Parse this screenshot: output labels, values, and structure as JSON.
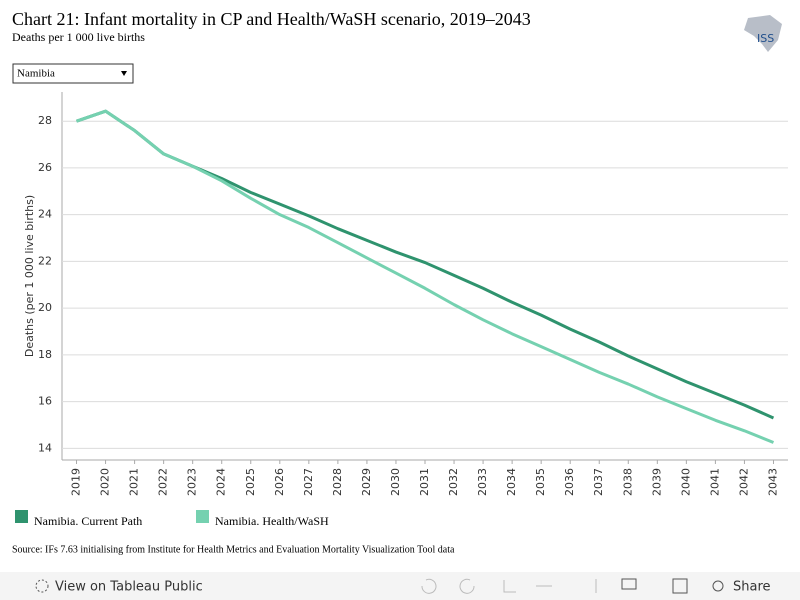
{
  "chart_data": {
    "type": "line",
    "title": "Chart 21: Infant mortality in CP and Health/WaSH scenario, 2019–2043",
    "subtitle": "Deaths per 1 000 live births",
    "y_label": "Deaths (per 1 000 live births)",
    "x": [
      2019,
      2020,
      2021,
      2022,
      2023,
      2024,
      2025,
      2026,
      2027,
      2028,
      2029,
      2030,
      2031,
      2032,
      2033,
      2034,
      2035,
      2036,
      2037,
      2038,
      2039,
      2040,
      2041,
      2042,
      2043
    ],
    "xlim": [
      2018.5,
      2043.5
    ],
    "xticks": [
      2019,
      2020,
      2021,
      2022,
      2023,
      2024,
      2025,
      2026,
      2027,
      2028,
      2029,
      2030,
      2031,
      2032,
      2033,
      2034,
      2035,
      2036,
      2037,
      2038,
      2039,
      2040,
      2041,
      2042,
      2043
    ],
    "ylim": [
      13.5,
      29.25
    ],
    "yticks": [
      14,
      16,
      18,
      20,
      22,
      24,
      26,
      28
    ],
    "grid": true,
    "series": [
      {
        "name": "Namibia. Current Path",
        "color": "#2f936e",
        "values": [
          28.0,
          28.43,
          27.6,
          26.6,
          26.07,
          25.55,
          24.95,
          24.45,
          23.95,
          23.4,
          22.9,
          22.4,
          21.95,
          21.4,
          20.85,
          20.25,
          19.7,
          19.1,
          18.55,
          17.95,
          17.4,
          16.85,
          16.35,
          15.85,
          15.3
        ]
      },
      {
        "name": "Namibia. Health/WaSH",
        "color": "#75d1b0",
        "values": [
          28.0,
          28.43,
          27.6,
          26.6,
          26.07,
          25.45,
          24.7,
          24.0,
          23.45,
          22.8,
          22.15,
          21.5,
          20.85,
          20.15,
          19.5,
          18.9,
          18.35,
          17.8,
          17.25,
          16.75,
          16.2,
          15.7,
          15.2,
          14.75,
          14.25
        ]
      }
    ]
  },
  "filter": {
    "selected": "Namibia"
  },
  "source": "Source: IFs 7.63 initialising from Institute for Health Metrics and Evaluation Mortality Visualization Tool data",
  "logo": "ISS",
  "toolbar": {
    "view": "View on Tableau Public",
    "share": "Share"
  }
}
